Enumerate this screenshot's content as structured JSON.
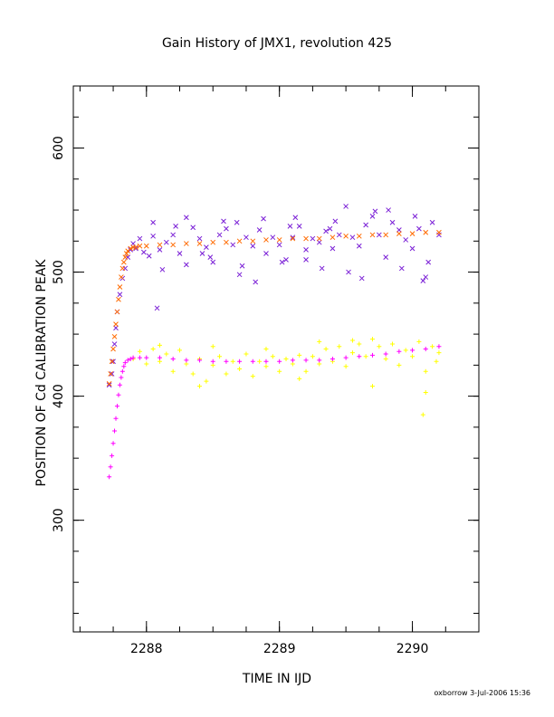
{
  "chart_data": {
    "type": "scatter",
    "title": "Gain History of JMX1, revolution 425",
    "xlabel": "TIME IN IJD",
    "ylabel": "POSITION OF Cd CALIBRATION PEAK",
    "xlim": [
      2287.45,
      2290.5
    ],
    "ylim": [
      210,
      650
    ],
    "xticks": [
      2288,
      2289,
      2290
    ],
    "yticks": [
      300,
      400,
      500,
      600
    ],
    "grid": false,
    "footer": "oxborrow  3-Jul-2006 15:36",
    "series": [
      {
        "marker": "x",
        "color": "#7a1fd6",
        "points": [
          [
            2287.72,
            409
          ],
          [
            2287.74,
            418
          ],
          [
            2287.75,
            428
          ],
          [
            2287.76,
            442
          ],
          [
            2287.77,
            455
          ],
          [
            2287.78,
            468
          ],
          [
            2287.8,
            482
          ],
          [
            2287.82,
            495
          ],
          [
            2287.84,
            503
          ],
          [
            2287.86,
            512
          ],
          [
            2287.88,
            518
          ],
          [
            2287.9,
            523
          ],
          [
            2287.92,
            519
          ],
          [
            2287.95,
            527
          ],
          [
            2287.98,
            516
          ],
          [
            2288.02,
            513
          ],
          [
            2288.05,
            529
          ],
          [
            2288.08,
            471
          ],
          [
            2288.1,
            518
          ],
          [
            2288.15,
            524
          ],
          [
            2288.2,
            530
          ],
          [
            2288.25,
            515
          ],
          [
            2288.3,
            506
          ],
          [
            2288.35,
            536
          ],
          [
            2288.4,
            527
          ],
          [
            2288.45,
            520
          ],
          [
            2288.5,
            508
          ],
          [
            2288.55,
            530
          ],
          [
            2288.6,
            535
          ],
          [
            2288.65,
            522
          ],
          [
            2288.7,
            498
          ],
          [
            2288.75,
            528
          ],
          [
            2288.8,
            521
          ],
          [
            2288.85,
            534
          ],
          [
            2288.9,
            515
          ],
          [
            2288.95,
            528
          ],
          [
            2289.0,
            522
          ],
          [
            2289.05,
            510
          ],
          [
            2289.1,
            528
          ],
          [
            2289.15,
            537
          ],
          [
            2289.2,
            518
          ],
          [
            2289.25,
            527
          ],
          [
            2289.3,
            524
          ],
          [
            2289.35,
            533
          ],
          [
            2289.4,
            519
          ],
          [
            2289.45,
            530
          ],
          [
            2289.5,
            553
          ],
          [
            2289.55,
            528
          ],
          [
            2289.6,
            521
          ],
          [
            2289.65,
            538
          ],
          [
            2289.7,
            545
          ],
          [
            2289.75,
            530
          ],
          [
            2289.8,
            512
          ],
          [
            2289.85,
            540
          ],
          [
            2289.9,
            534
          ],
          [
            2289.95,
            526
          ],
          [
            2290.0,
            519
          ],
          [
            2290.05,
            535
          ],
          [
            2290.1,
            496
          ],
          [
            2290.15,
            540
          ],
          [
            2290.2,
            530
          ],
          [
            2288.12,
            502
          ],
          [
            2288.42,
            515
          ],
          [
            2288.72,
            505
          ],
          [
            2289.02,
            508
          ],
          [
            2289.32,
            503
          ],
          [
            2289.62,
            495
          ],
          [
            2289.92,
            503
          ],
          [
            2290.12,
            508
          ],
          [
            2288.05,
            540
          ],
          [
            2288.3,
            544
          ],
          [
            2288.58,
            541
          ],
          [
            2288.88,
            543
          ],
          [
            2289.12,
            544
          ],
          [
            2289.42,
            541
          ],
          [
            2289.72,
            549
          ],
          [
            2290.02,
            545
          ],
          [
            2288.48,
            512
          ],
          [
            2288.82,
            492
          ],
          [
            2289.2,
            510
          ],
          [
            2289.52,
            500
          ],
          [
            2290.08,
            493
          ],
          [
            2288.22,
            537
          ],
          [
            2288.68,
            540
          ],
          [
            2289.08,
            537
          ],
          [
            2289.38,
            535
          ],
          [
            2289.82,
            550
          ]
        ]
      },
      {
        "marker": "x",
        "color": "#ff6a00",
        "points": [
          [
            2287.72,
            410
          ],
          [
            2287.73,
            418
          ],
          [
            2287.74,
            428
          ],
          [
            2287.75,
            438
          ],
          [
            2287.76,
            448
          ],
          [
            2287.77,
            458
          ],
          [
            2287.78,
            468
          ],
          [
            2287.79,
            478
          ],
          [
            2287.8,
            488
          ],
          [
            2287.81,
            496
          ],
          [
            2287.82,
            503
          ],
          [
            2287.83,
            508
          ],
          [
            2287.84,
            512
          ],
          [
            2287.85,
            515
          ],
          [
            2287.86,
            517
          ],
          [
            2287.88,
            519
          ],
          [
            2287.9,
            520
          ],
          [
            2287.92,
            520
          ],
          [
            2287.95,
            521
          ],
          [
            2288.0,
            521
          ],
          [
            2288.1,
            522
          ],
          [
            2288.2,
            522
          ],
          [
            2288.3,
            523
          ],
          [
            2288.4,
            523
          ],
          [
            2288.5,
            524
          ],
          [
            2288.6,
            524
          ],
          [
            2288.7,
            525
          ],
          [
            2288.8,
            525
          ],
          [
            2288.9,
            526
          ],
          [
            2289.0,
            526
          ],
          [
            2289.1,
            527
          ],
          [
            2289.2,
            527
          ],
          [
            2289.3,
            527
          ],
          [
            2289.4,
            528
          ],
          [
            2289.5,
            529
          ],
          [
            2289.6,
            529
          ],
          [
            2289.7,
            530
          ],
          [
            2289.8,
            530
          ],
          [
            2289.9,
            531
          ],
          [
            2290.0,
            531
          ],
          [
            2290.1,
            532
          ],
          [
            2290.2,
            532
          ]
        ]
      },
      {
        "marker": "+",
        "color": "#ffff00",
        "points": [
          [
            2287.9,
            430
          ],
          [
            2287.95,
            436
          ],
          [
            2288.0,
            426
          ],
          [
            2288.05,
            438
          ],
          [
            2288.1,
            428
          ],
          [
            2288.15,
            434
          ],
          [
            2288.2,
            420
          ],
          [
            2288.25,
            437
          ],
          [
            2288.3,
            426
          ],
          [
            2288.35,
            418
          ],
          [
            2288.4,
            430
          ],
          [
            2288.45,
            412
          ],
          [
            2288.5,
            425
          ],
          [
            2288.55,
            432
          ],
          [
            2288.6,
            418
          ],
          [
            2288.65,
            428
          ],
          [
            2288.7,
            422
          ],
          [
            2288.75,
            434
          ],
          [
            2288.8,
            416
          ],
          [
            2288.85,
            428
          ],
          [
            2288.9,
            424
          ],
          [
            2288.95,
            432
          ],
          [
            2289.0,
            420
          ],
          [
            2289.05,
            430
          ],
          [
            2289.1,
            426
          ],
          [
            2289.15,
            433
          ],
          [
            2289.2,
            420
          ],
          [
            2289.25,
            432
          ],
          [
            2289.3,
            426
          ],
          [
            2289.35,
            438
          ],
          [
            2289.4,
            428
          ],
          [
            2289.45,
            440
          ],
          [
            2289.5,
            424
          ],
          [
            2289.55,
            435
          ],
          [
            2289.6,
            442
          ],
          [
            2289.65,
            432
          ],
          [
            2289.7,
            408
          ],
          [
            2289.75,
            440
          ],
          [
            2289.8,
            430
          ],
          [
            2289.85,
            442
          ],
          [
            2289.9,
            425
          ],
          [
            2289.95,
            437
          ],
          [
            2290.0,
            432
          ],
          [
            2290.05,
            444
          ],
          [
            2290.1,
            420
          ],
          [
            2290.15,
            440
          ],
          [
            2290.2,
            435
          ],
          [
            2290.08,
            385
          ],
          [
            2290.1,
            403
          ],
          [
            2289.55,
            445
          ],
          [
            2289.3,
            444
          ],
          [
            2288.9,
            438
          ],
          [
            2288.5,
            440
          ],
          [
            2288.1,
            441
          ],
          [
            2289.15,
            414
          ],
          [
            2288.4,
            408
          ],
          [
            2289.7,
            446
          ],
          [
            2290.18,
            428
          ]
        ]
      },
      {
        "marker": "+",
        "color": "#ff00ff",
        "points": [
          [
            2287.72,
            335
          ],
          [
            2287.73,
            343
          ],
          [
            2287.74,
            352
          ],
          [
            2287.75,
            362
          ],
          [
            2287.76,
            372
          ],
          [
            2287.77,
            382
          ],
          [
            2287.78,
            392
          ],
          [
            2287.79,
            401
          ],
          [
            2287.8,
            409
          ],
          [
            2287.81,
            415
          ],
          [
            2287.82,
            420
          ],
          [
            2287.83,
            424
          ],
          [
            2287.84,
            427
          ],
          [
            2287.86,
            429
          ],
          [
            2287.88,
            430
          ],
          [
            2287.9,
            431
          ],
          [
            2287.95,
            431
          ],
          [
            2288.0,
            431
          ],
          [
            2288.1,
            431
          ],
          [
            2288.2,
            430
          ],
          [
            2288.3,
            429
          ],
          [
            2288.4,
            429
          ],
          [
            2288.5,
            428
          ],
          [
            2288.6,
            428
          ],
          [
            2288.7,
            428
          ],
          [
            2288.8,
            428
          ],
          [
            2288.9,
            428
          ],
          [
            2289.0,
            428
          ],
          [
            2289.1,
            429
          ],
          [
            2289.2,
            429
          ],
          [
            2289.3,
            429
          ],
          [
            2289.4,
            430
          ],
          [
            2289.5,
            431
          ],
          [
            2289.6,
            432
          ],
          [
            2289.7,
            433
          ],
          [
            2289.8,
            434
          ],
          [
            2289.9,
            436
          ],
          [
            2290.0,
            437
          ],
          [
            2290.1,
            438
          ],
          [
            2290.2,
            440
          ]
        ]
      }
    ]
  }
}
